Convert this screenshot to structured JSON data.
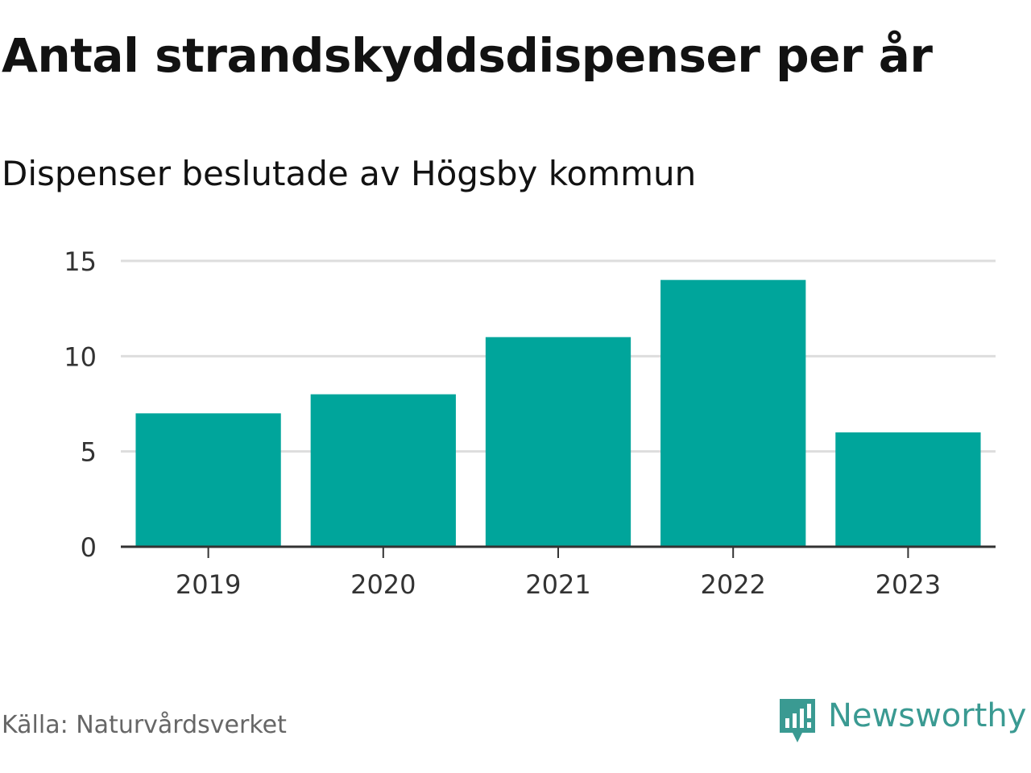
{
  "chart_data": {
    "type": "bar",
    "title": "Antal strandskyddsdispenser per år",
    "subtitle": "Dispenser beslutade av Högsby kommun",
    "categories": [
      "2019",
      "2020",
      "2021",
      "2022",
      "2023"
    ],
    "values": [
      7,
      8,
      11,
      14,
      6
    ],
    "xlabel": "",
    "ylabel": "",
    "ylim": [
      0,
      15
    ],
    "yticks": [
      "0",
      "5",
      "10",
      "15"
    ],
    "ytick_values": [
      0,
      5,
      10,
      15
    ],
    "grid": true,
    "bar_color": "#00a59b",
    "grid_color": "#dddddd",
    "axis_color": "#333333"
  },
  "footer": {
    "source": "Källa: Naturvårdsverket",
    "brand": "Newsworthy",
    "brand_color": "#3a9a92",
    "brand_icon": "newsworthy-chart-bubble-icon"
  }
}
